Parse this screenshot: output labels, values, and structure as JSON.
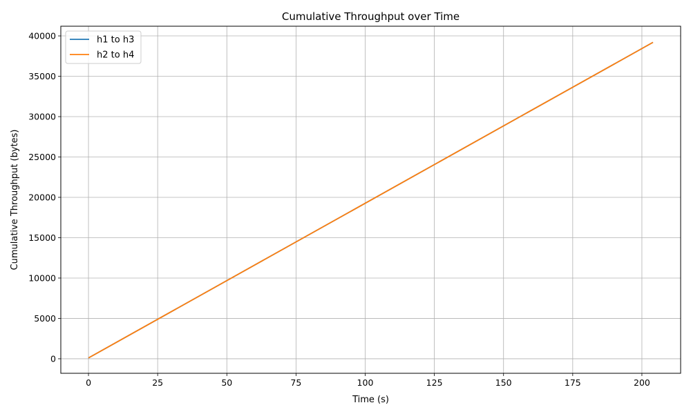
{
  "chart_data": {
    "type": "line",
    "title": "Cumulative Throughput over Time",
    "xlabel": "Time (s)",
    "ylabel": "Cumulative Throughput (bytes)",
    "xlim": [
      -10,
      214
    ],
    "ylim": [
      -1800,
      41200
    ],
    "xticks": [
      0,
      25,
      50,
      75,
      100,
      125,
      150,
      175,
      200
    ],
    "yticks": [
      0,
      5000,
      10000,
      15000,
      20000,
      25000,
      30000,
      35000,
      40000
    ],
    "grid": true,
    "legend_position": "top-left",
    "series": [
      {
        "name": "h1 to h3",
        "color": "#1f77b4",
        "x": [
          0,
          204
        ],
        "y": [
          100,
          39200
        ]
      },
      {
        "name": "h2 to h4",
        "color": "#ff7f0e",
        "x": [
          0,
          204
        ],
        "y": [
          100,
          39200
        ]
      }
    ]
  }
}
